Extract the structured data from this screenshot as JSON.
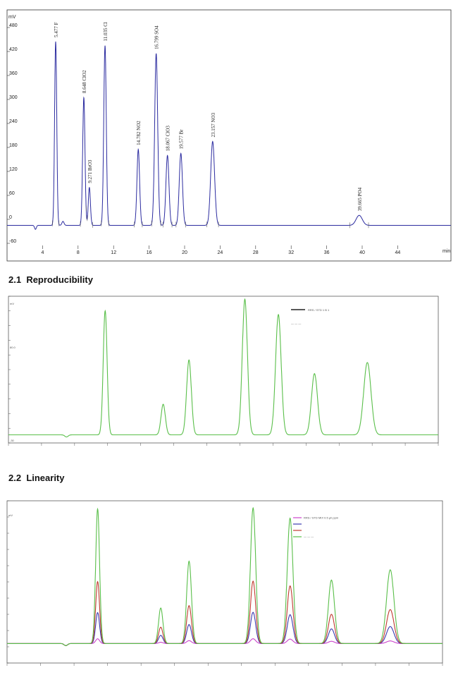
{
  "headings": [
    {
      "number": "2.1",
      "title": "Reproducibility"
    },
    {
      "number": "2.2",
      "title": "Linearity"
    }
  ],
  "chart_data": [
    {
      "type": "line",
      "title": "",
      "xlabel": "min",
      "ylabel": "mV",
      "xlim": [
        0,
        50
      ],
      "ylim": [
        -60,
        510
      ],
      "xticks": [
        4,
        8,
        12,
        16,
        20,
        24,
        28,
        32,
        36,
        40,
        44
      ],
      "yticks": [
        -60,
        0,
        60,
        120,
        180,
        240,
        300,
        360,
        420,
        480
      ],
      "baseline": -15,
      "peaks": [
        {
          "label": "5.477 F",
          "x": 5.477,
          "y": 445,
          "width": 0.12
        },
        {
          "label": "",
          "x": 6.3,
          "y": -5,
          "width": 0.12
        },
        {
          "label": "8.648 ClO2",
          "x": 8.648,
          "y": 305,
          "width": 0.13
        },
        {
          "label": "9.271 BrO3",
          "x": 9.271,
          "y": 80,
          "width": 0.12
        },
        {
          "label": "11.035 Cl",
          "x": 11.035,
          "y": 435,
          "width": 0.14
        },
        {
          "label": "14.782 NO2",
          "x": 14.782,
          "y": 175,
          "width": 0.15
        },
        {
          "label": "16.799 SO4",
          "x": 16.799,
          "y": 415,
          "width": 0.17
        },
        {
          "label": "18.067 ClO3",
          "x": 18.067,
          "y": 160,
          "width": 0.17
        },
        {
          "label": "19.577 Br",
          "x": 19.577,
          "y": 165,
          "width": 0.18
        },
        {
          "label": "23.157 NO3",
          "x": 23.157,
          "y": 195,
          "width": 0.22
        },
        {
          "label": "39.665 PO4",
          "x": 39.665,
          "y": 10,
          "width": 0.35
        }
      ]
    },
    {
      "type": "line",
      "title": "",
      "ylabel": "mV",
      "legend": {
        "entries": [
          "RRS / STD 1 B 1",
          "—  —  —"
        ],
        "placement": "top-right"
      },
      "y_tick_labels": [
        "mV",
        "80.0",
        "-30"
      ],
      "baseline": 0,
      "ylim": [
        -10,
        260
      ],
      "xlim": [
        0,
        100
      ],
      "peaks": [
        {
          "x": 22.5,
          "y": 235,
          "width": 0.45
        },
        {
          "x": 36.0,
          "y": 58,
          "width": 0.5
        },
        {
          "x": 42.0,
          "y": 142,
          "width": 0.55
        },
        {
          "x": 55.0,
          "y": 257,
          "width": 0.6
        },
        {
          "x": 62.8,
          "y": 228,
          "width": 0.65
        },
        {
          "x": 71.2,
          "y": 116,
          "width": 0.7
        },
        {
          "x": 83.5,
          "y": 137,
          "width": 0.85
        }
      ],
      "series": [
        {
          "name": "",
          "color": "#5abf4a",
          "scale": 1.0
        }
      ]
    },
    {
      "type": "line",
      "title": "",
      "ylabel": "mV",
      "legend": {
        "entries": [
          "RRS / STD MIX 0.5 µh ppm",
          "",
          "",
          "—  —  —"
        ],
        "placement": "top-right"
      },
      "baseline": 0,
      "ylim": [
        -10,
        260
      ],
      "xlim": [
        0,
        100
      ],
      "peaks": [
        {
          "x": 20.8,
          "y": 250,
          "width": 0.45
        },
        {
          "x": 35.3,
          "y": 66,
          "width": 0.5
        },
        {
          "x": 41.8,
          "y": 153,
          "width": 0.55
        },
        {
          "x": 56.5,
          "y": 252,
          "width": 0.6
        },
        {
          "x": 65.0,
          "y": 233,
          "width": 0.65
        },
        {
          "x": 74.5,
          "y": 118,
          "width": 0.7
        },
        {
          "x": 88.0,
          "y": 137,
          "width": 0.85
        }
      ],
      "series": [
        {
          "name": "",
          "color": "#cc44cc",
          "scale": 0.035
        },
        {
          "name": "",
          "color": "#3a3ab0",
          "scale": 0.23
        },
        {
          "name": "",
          "color": "#c03a30",
          "scale": 0.46
        },
        {
          "name": "",
          "color": "#5abf4a",
          "scale": 1.0
        }
      ]
    }
  ]
}
